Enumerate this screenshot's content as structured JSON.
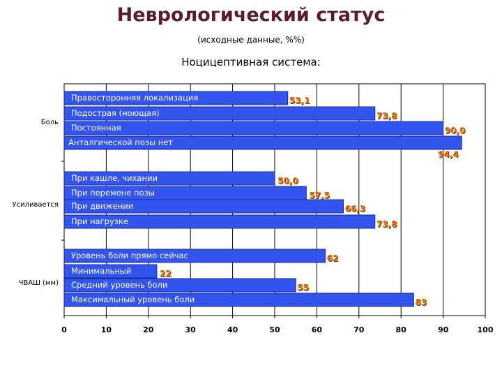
{
  "title": "Неврологический статус",
  "subtitle": "(исходные данные, %%)",
  "heading": "Ноцицептивная система:",
  "colors": {
    "bar_fill": "#3355ee",
    "bar_stroke": "#1a2a99",
    "bar_label": "#ffffff",
    "value_label": "#e07818",
    "value_shadow": "#7a3a00",
    "title": "#5a1e2a"
  },
  "chart_data": {
    "type": "bar",
    "orientation": "horizontal",
    "xlim": [
      0,
      100
    ],
    "xticks": [
      "0",
      "10",
      "20",
      "30",
      "40",
      "50",
      "60",
      "70",
      "80",
      "90",
      "100"
    ],
    "grid": "vertical",
    "groups": [
      {
        "label": "Боль",
        "bars": [
          {
            "label": "Правосторонняя локализация",
            "value": 53.1,
            "value_label": "53,1"
          },
          {
            "label": "Подострая (ноющая)",
            "value": 73.8,
            "value_label": "73,8"
          },
          {
            "label": "Постоянная",
            "value": 90.0,
            "value_label": "90,0"
          },
          {
            "label": "Анталгической позы нет",
            "value": 94.4,
            "value_label": "94,4"
          }
        ]
      },
      {
        "label": "Усиливается",
        "bars": [
          {
            "label": "При кашле, чихании",
            "value": 50.0,
            "value_label": "50,0"
          },
          {
            "label": "При перемене позы",
            "value": 57.5,
            "value_label": "57,5"
          },
          {
            "label": "При движении",
            "value": 66.3,
            "value_label": "66,3"
          },
          {
            "label": "При нагрузке",
            "value": 73.8,
            "value_label": "73,8"
          }
        ]
      },
      {
        "label": "ЧВАШ (мм)",
        "bars": [
          {
            "label": "Уровень боли прямо сейчас",
            "value": 62,
            "value_label": "62"
          },
          {
            "label": "Минимальный",
            "value": 22,
            "value_label": "22"
          },
          {
            "label": "Средний уровень боли",
            "value": 55,
            "value_label": "55"
          },
          {
            "label": "Максимальный уровень боли",
            "value": 83,
            "value_label": "83"
          }
        ]
      }
    ]
  }
}
